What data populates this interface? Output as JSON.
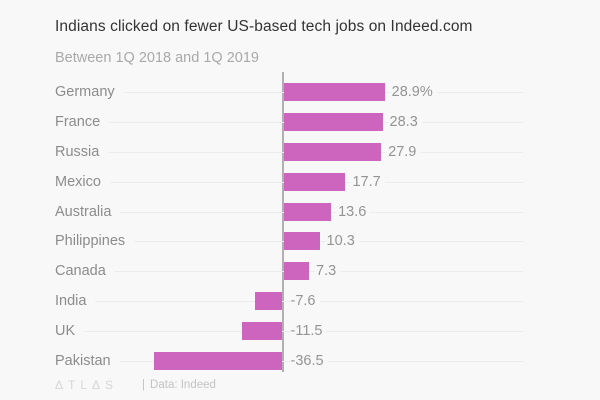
{
  "title": "Indians clicked on fewer US-based tech jobs on Indeed.com",
  "subtitle": "Between 1Q 2018 and 1Q 2019",
  "chart_data": {
    "type": "bar",
    "orientation": "horizontal",
    "categories": [
      "Germany",
      "France",
      "Russia",
      "Mexico",
      "Australia",
      "Philippines",
      "Canada",
      "India",
      "UK",
      "Pakistan"
    ],
    "values": [
      28.9,
      28.3,
      27.9,
      17.7,
      13.6,
      10.3,
      7.3,
      -7.6,
      -11.5,
      -36.5
    ],
    "value_labels": [
      "28.9%",
      "28.3",
      "27.9",
      "17.7",
      "13.6",
      "10.3",
      "7.3",
      "-7.6",
      "-11.5",
      "-36.5"
    ],
    "title": "Indians clicked on fewer US-based tech jobs on Indeed.com",
    "xlabel": "",
    "ylabel": "",
    "xlim": [
      -65,
      75
    ],
    "grid": "horizontal-row-lines",
    "legend": false,
    "bar_color": "#cd64be"
  },
  "colors": {
    "background": "#f8f8f8",
    "bar": "#cd64be",
    "title_text": "#333333",
    "subtitle_text": "#a9a9a9",
    "category_text": "#8c8c8c",
    "value_text": "#949494",
    "gridline": "#ececec",
    "axis_line": "#b0b0b0",
    "logo_text": "#d6d6d6",
    "source_text": "#c3c3c3"
  },
  "footer": {
    "logo": "ΔTLΔS",
    "separator": "|",
    "source": "Data: Indeed"
  }
}
